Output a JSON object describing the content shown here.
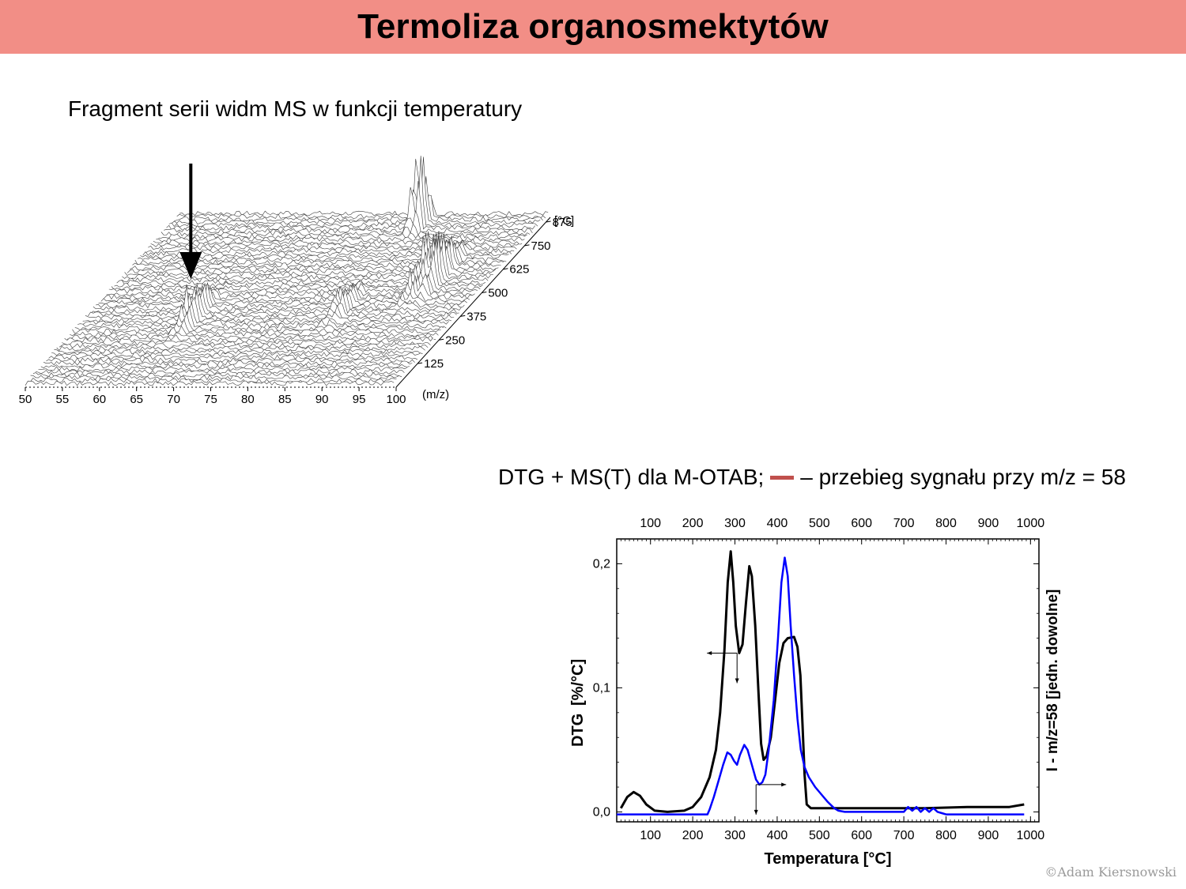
{
  "header": {
    "title": "Termoliza organosmektytów"
  },
  "ms_caption": "Fragment serii widm MS w funkcji temperatury",
  "dtg_caption": {
    "prefix": "DTG + MS(T) dla M-OTAB;",
    "suffix": "– przebieg sygnału przy m/z = 58",
    "swatch_color": "#c0504d"
  },
  "credit": "©Adam Kiersnowski",
  "chart_data": [
    {
      "type": "line",
      "subtype": "3d-waterfall",
      "x": {
        "label": "(m/z)",
        "ticks": [
          50,
          55,
          60,
          65,
          70,
          75,
          80,
          85,
          90,
          95,
          100
        ],
        "range": [
          50,
          100
        ]
      },
      "y": {
        "label": "[°C]",
        "ticks": [
          125,
          250,
          375,
          500,
          625,
          750,
          875
        ],
        "range": [
          0,
          900
        ]
      },
      "marker": {
        "type": "arrow",
        "x": 64
      },
      "prominent_peaks_mz": [
        64,
        65,
        83,
        84,
        91,
        92,
        93
      ]
    },
    {
      "type": "line",
      "x": {
        "label": "Temperatura [°C]",
        "ticks": [
          100,
          200,
          300,
          400,
          500,
          600,
          700,
          800,
          900,
          1000
        ],
        "range": [
          20,
          1020
        ]
      },
      "y_left": {
        "label_main": "DTG",
        "label_unit": "[%/°C]",
        "ticks": [
          "0,0",
          "0,1",
          "0,2"
        ],
        "tick_values": [
          0.0,
          0.1,
          0.2
        ],
        "range": [
          -0.008,
          0.22
        ]
      },
      "y_right": {
        "label": "I - m/z=58 [jedn. dowolne]"
      },
      "grid": false,
      "series": [
        {
          "color": "#000000",
          "axis": "left",
          "points": [
            [
              30,
              0.003
            ],
            [
              45,
              0.012
            ],
            [
              60,
              0.016
            ],
            [
              75,
              0.013
            ],
            [
              90,
              0.006
            ],
            [
              110,
              0.001
            ],
            [
              140,
              0.0
            ],
            [
              180,
              0.001
            ],
            [
              200,
              0.004
            ],
            [
              220,
              0.012
            ],
            [
              240,
              0.028
            ],
            [
              255,
              0.05
            ],
            [
              265,
              0.08
            ],
            [
              275,
              0.13
            ],
            [
              283,
              0.185
            ],
            [
              290,
              0.21
            ],
            [
              296,
              0.185
            ],
            [
              302,
              0.15
            ],
            [
              310,
              0.128
            ],
            [
              318,
              0.135
            ],
            [
              326,
              0.168
            ],
            [
              334,
              0.198
            ],
            [
              340,
              0.19
            ],
            [
              348,
              0.15
            ],
            [
              356,
              0.095
            ],
            [
              362,
              0.055
            ],
            [
              368,
              0.042
            ],
            [
              375,
              0.045
            ],
            [
              385,
              0.06
            ],
            [
              395,
              0.09
            ],
            [
              405,
              0.12
            ],
            [
              415,
              0.136
            ],
            [
              425,
              0.14
            ],
            [
              440,
              0.141
            ],
            [
              448,
              0.133
            ],
            [
              455,
              0.11
            ],
            [
              460,
              0.07
            ],
            [
              465,
              0.03
            ],
            [
              470,
              0.006
            ],
            [
              480,
              0.003
            ],
            [
              550,
              0.003
            ],
            [
              650,
              0.003
            ],
            [
              750,
              0.003
            ],
            [
              850,
              0.004
            ],
            [
              950,
              0.004
            ],
            [
              985,
              0.006
            ]
          ]
        },
        {
          "color": "#0000ff",
          "axis": "right",
          "points": [
            [
              20,
              -0.002
            ],
            [
              235,
              -0.002
            ],
            [
              240,
              0.002
            ],
            [
              250,
              0.012
            ],
            [
              262,
              0.026
            ],
            [
              272,
              0.038
            ],
            [
              282,
              0.048
            ],
            [
              290,
              0.046
            ],
            [
              298,
              0.041
            ],
            [
              305,
              0.038
            ],
            [
              312,
              0.046
            ],
            [
              322,
              0.054
            ],
            [
              330,
              0.05
            ],
            [
              340,
              0.038
            ],
            [
              350,
              0.026
            ],
            [
              358,
              0.022
            ],
            [
              365,
              0.024
            ],
            [
              372,
              0.03
            ],
            [
              380,
              0.05
            ],
            [
              392,
              0.09
            ],
            [
              402,
              0.14
            ],
            [
              410,
              0.185
            ],
            [
              418,
              0.205
            ],
            [
              425,
              0.19
            ],
            [
              432,
              0.15
            ],
            [
              440,
              0.11
            ],
            [
              448,
              0.075
            ],
            [
              456,
              0.05
            ],
            [
              465,
              0.036
            ],
            [
              475,
              0.028
            ],
            [
              490,
              0.02
            ],
            [
              505,
              0.014
            ],
            [
              520,
              0.008
            ],
            [
              535,
              0.003
            ],
            [
              545,
              0.001
            ],
            [
              560,
              0.0
            ],
            [
              700,
              0.0
            ],
            [
              710,
              0.004
            ],
            [
              720,
              0.001
            ],
            [
              730,
              0.004
            ],
            [
              740,
              0.0
            ],
            [
              750,
              0.003
            ],
            [
              760,
              0.0
            ],
            [
              770,
              0.003
            ],
            [
              780,
              0.0
            ],
            [
              790,
              -0.001
            ],
            [
              800,
              -0.002
            ],
            [
              985,
              -0.002
            ]
          ]
        }
      ],
      "annotations": [
        {
          "type": "axis-arrow",
          "target": "left",
          "at_x": 305,
          "at_y": 0.128
        },
        {
          "type": "axis-arrow",
          "target": "right",
          "at_x": 350,
          "at_y": 0.022
        }
      ]
    }
  ]
}
